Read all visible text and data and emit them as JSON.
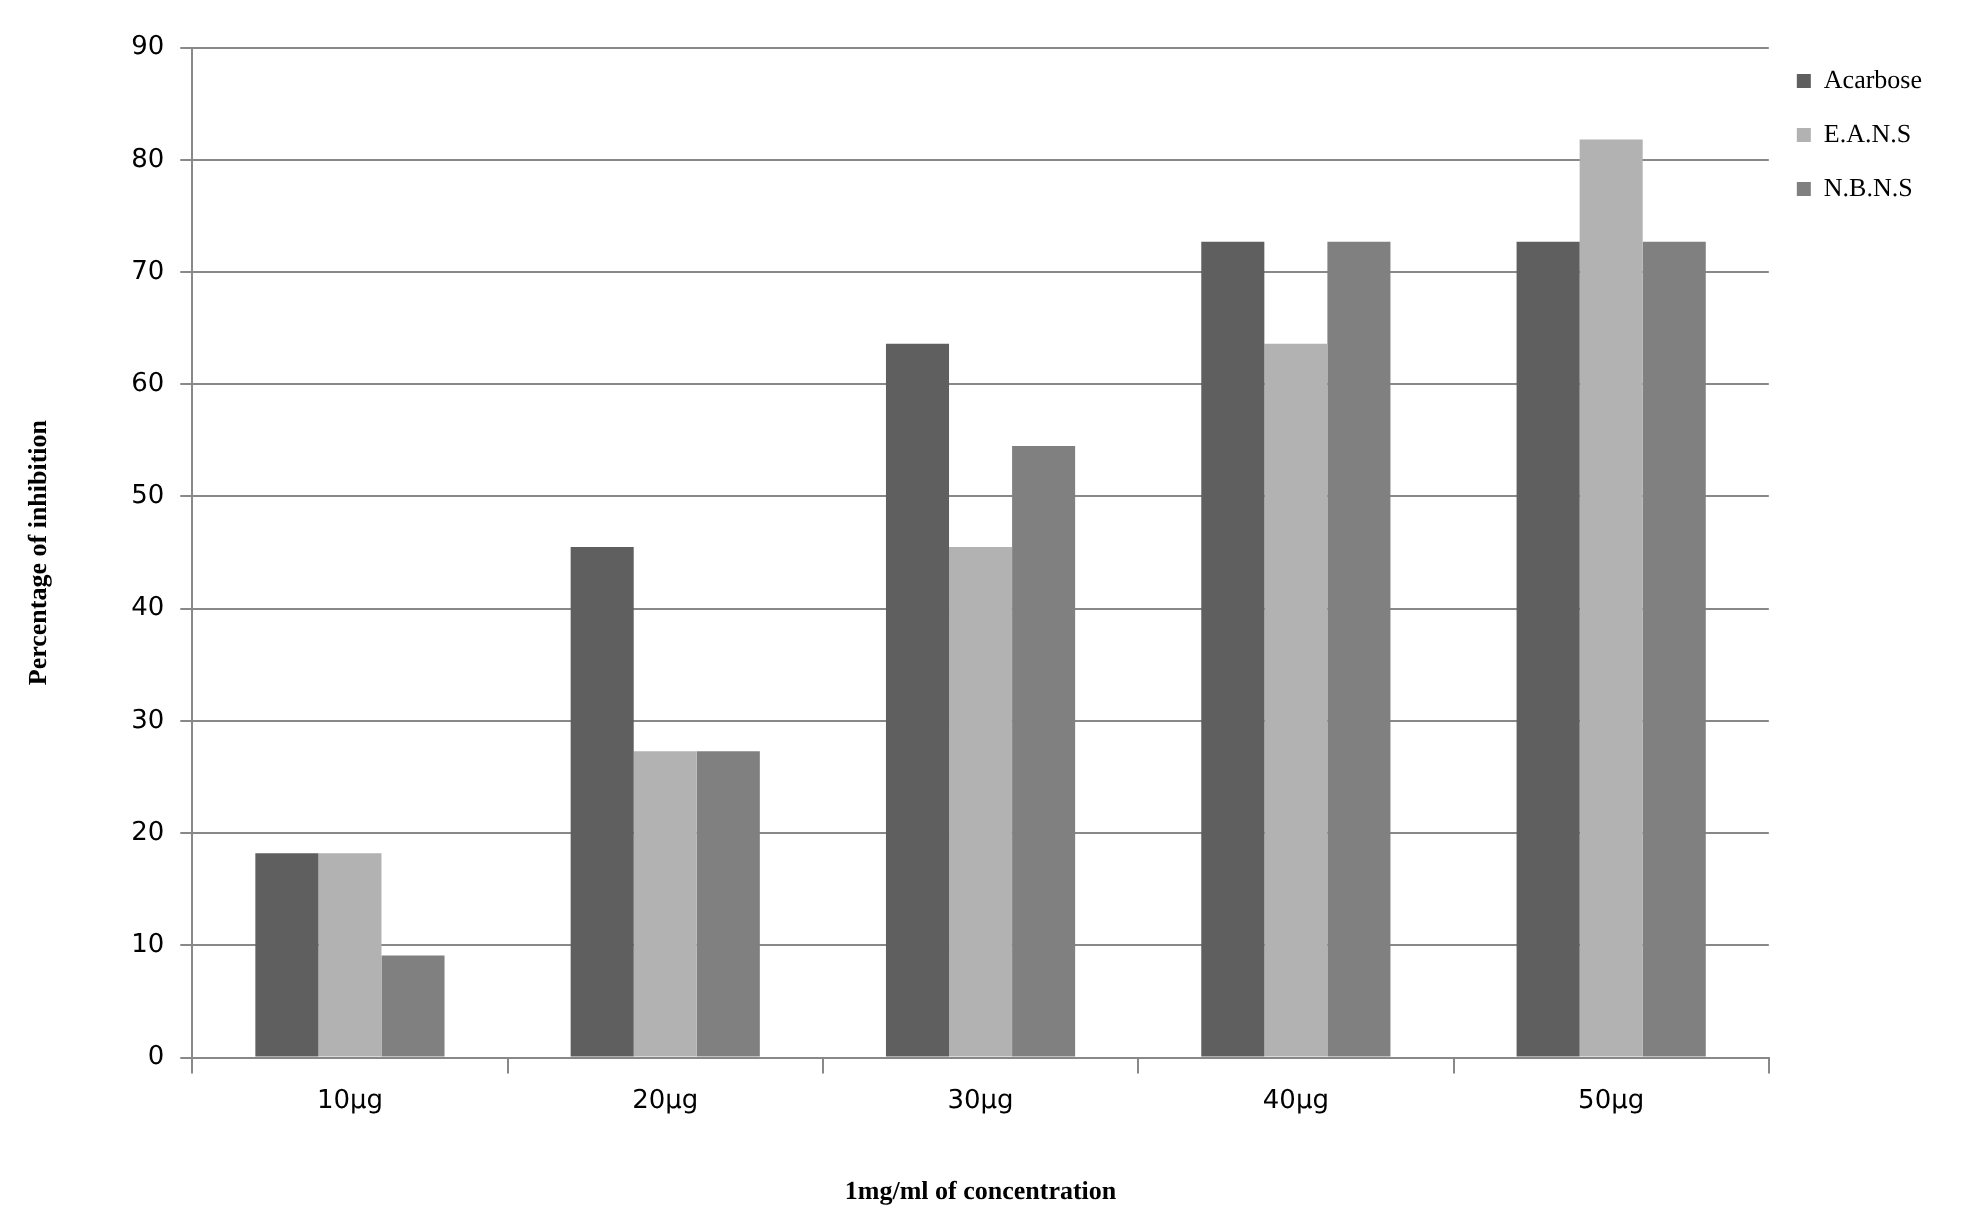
{
  "chart_data": {
    "type": "bar",
    "xlabel": "1mg/ml of concentration",
    "ylabel": "Percentage of inhibition",
    "categories": [
      "10µg",
      "20µg",
      "30µg",
      "40µg",
      "50µg"
    ],
    "series": [
      {
        "name": "Acarbose",
        "color": "#5f5f5f",
        "values": [
          18.2,
          45.5,
          63.6,
          72.7,
          72.7
        ]
      },
      {
        "name": "E.A.N.S",
        "color": "#b2b2b2",
        "values": [
          18.2,
          27.3,
          45.5,
          63.6,
          81.8
        ]
      },
      {
        "name": "N.B.N.S",
        "color": "#808080",
        "values": [
          9.1,
          27.3,
          54.5,
          72.7,
          72.7
        ]
      }
    ],
    "ylim": [
      0,
      90
    ],
    "yticks": [
      0,
      10,
      20,
      30,
      40,
      50,
      60,
      70,
      80,
      90
    ],
    "grid": "y",
    "legend": "top right"
  }
}
